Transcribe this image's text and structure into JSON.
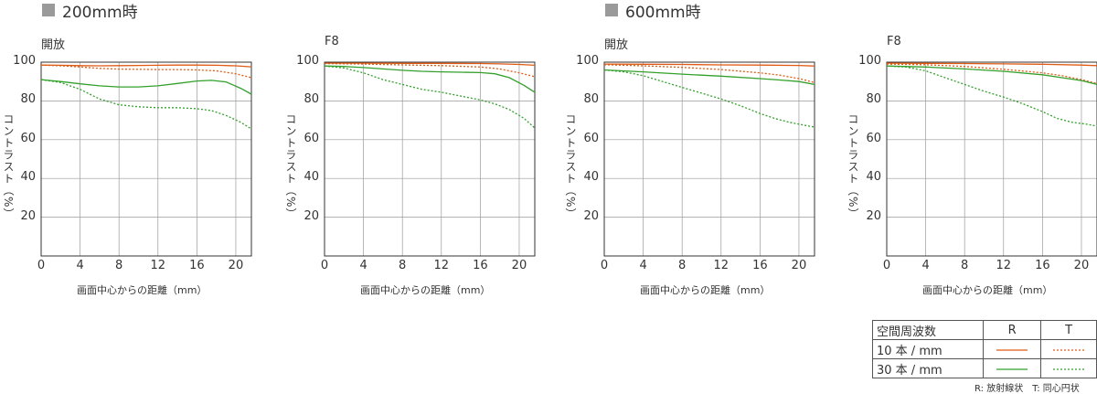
{
  "headers": [
    "200mm時",
    "600mm時"
  ],
  "chart_data": [
    {
      "type": "line",
      "aperture": "開放",
      "xlabel": "画面中心からの距離（mm）",
      "ylabel": "コントラスト（%）",
      "xlim": [
        0,
        21.6
      ],
      "ylim": [
        0,
        100
      ],
      "xticks": [
        0,
        4,
        8,
        12,
        16,
        20
      ],
      "yticks": [
        20,
        40,
        60,
        80,
        100
      ],
      "grid": true,
      "series": [
        {
          "name": "10本/mm R",
          "x": [
            0,
            2,
            4,
            6,
            8,
            10,
            12,
            14,
            16,
            18,
            20,
            21.6
          ],
          "y": [
            98.5,
            98.4,
            98.2,
            98.1,
            98.2,
            98.3,
            98.4,
            98.5,
            98.5,
            98.4,
            98.1,
            97.6
          ]
        },
        {
          "name": "10本/mm T",
          "x": [
            0,
            2,
            4,
            6,
            8,
            10,
            12,
            14,
            16,
            18,
            20,
            21.6
          ],
          "y": [
            98.5,
            98.1,
            97.5,
            96.8,
            96.4,
            96.3,
            96.2,
            96.2,
            96.0,
            95.5,
            94.0,
            92.0
          ]
        },
        {
          "name": "30本/mm R",
          "x": [
            0,
            2,
            4,
            6,
            8,
            10,
            12,
            14,
            16,
            17.5,
            19,
            20.5,
            21.6
          ],
          "y": [
            91,
            90,
            88.8,
            87.8,
            87.2,
            87.2,
            87.8,
            89.0,
            90.3,
            90.6,
            89.8,
            86.5,
            83.5
          ]
        },
        {
          "name": "30本/mm T",
          "x": [
            0,
            2,
            4,
            6,
            8,
            10,
            12,
            14,
            16,
            17.5,
            19,
            20.5,
            21.6
          ],
          "y": [
            91,
            89.5,
            86,
            81,
            78,
            77,
            76.5,
            76.5,
            76.0,
            75.0,
            72.5,
            69,
            65.5
          ]
        }
      ]
    },
    {
      "type": "line",
      "aperture": "F8",
      "xlabel": "画面中心からの距離（mm）",
      "ylabel": "コントラスト（%）",
      "xlim": [
        0,
        21.6
      ],
      "ylim": [
        0,
        100
      ],
      "xticks": [
        0,
        4,
        8,
        12,
        16,
        20
      ],
      "yticks": [
        20,
        40,
        60,
        80,
        100
      ],
      "grid": true,
      "series": [
        {
          "name": "10本/mm R",
          "x": [
            0,
            4,
            8,
            12,
            16,
            18,
            20,
            21.6
          ],
          "y": [
            99.5,
            99.5,
            99.4,
            99.4,
            99.3,
            99.1,
            98.8,
            98.4
          ]
        },
        {
          "name": "10本/mm T",
          "x": [
            0,
            4,
            8,
            12,
            16,
            18,
            20,
            21.6
          ],
          "y": [
            99.3,
            99.0,
            98.6,
            98.2,
            97.5,
            96.5,
            94.5,
            92.5
          ]
        },
        {
          "name": "30本/mm R",
          "x": [
            0,
            2,
            4,
            6,
            8,
            10,
            12,
            14,
            16,
            17.5,
            19,
            20.5,
            21.6
          ],
          "y": [
            98,
            97.8,
            97.2,
            96.5,
            95.8,
            95.3,
            95.0,
            94.8,
            94.6,
            94.0,
            92.0,
            88.0,
            84.5
          ]
        },
        {
          "name": "30本/mm T",
          "x": [
            0,
            2,
            4,
            6,
            8,
            10,
            12,
            14,
            16,
            17.5,
            19,
            20.5,
            21.6
          ],
          "y": [
            98,
            97,
            94.5,
            91,
            88.5,
            86,
            84.5,
            82.5,
            80.5,
            78.5,
            75.5,
            71,
            66
          ]
        }
      ]
    },
    {
      "type": "line",
      "aperture": "開放",
      "xlabel": "画面中心からの距離（mm）",
      "ylabel": "コントラスト（%）",
      "xlim": [
        0,
        21.6
      ],
      "ylim": [
        0,
        100
      ],
      "xticks": [
        0,
        4,
        8,
        12,
        16,
        20
      ],
      "yticks": [
        20,
        40,
        60,
        80,
        100
      ],
      "grid": true,
      "series": [
        {
          "name": "10本/mm R",
          "x": [
            0,
            4,
            8,
            12,
            16,
            20,
            21.6
          ],
          "y": [
            99,
            98.9,
            98.8,
            98.6,
            98.5,
            98.3,
            98.0
          ]
        },
        {
          "name": "10本/mm T",
          "x": [
            0,
            4,
            8,
            12,
            16,
            18,
            20,
            21.6
          ],
          "y": [
            98.7,
            98.1,
            97.3,
            96.2,
            94.5,
            93.3,
            91.5,
            89.5
          ]
        },
        {
          "name": "30本/mm R",
          "x": [
            0,
            4,
            8,
            12,
            16,
            18,
            20,
            21.6
          ],
          "y": [
            96,
            95,
            93.8,
            92.8,
            91.5,
            90.8,
            90.0,
            88.5
          ]
        },
        {
          "name": "30本/mm T",
          "x": [
            0,
            2,
            4,
            6,
            8,
            10,
            12,
            14,
            16,
            17.5,
            19,
            20.5,
            21.6
          ],
          "y": [
            96,
            95,
            93,
            90,
            87,
            84,
            81,
            77.5,
            73.5,
            71,
            69,
            67.5,
            66.5
          ]
        }
      ]
    },
    {
      "type": "line",
      "aperture": "F8",
      "xlabel": "画面中心からの距離（mm）",
      "ylabel": "コントラスト（%）",
      "xlim": [
        0,
        21.6
      ],
      "ylim": [
        0,
        100
      ],
      "xticks": [
        0,
        4,
        8,
        12,
        16,
        20
      ],
      "yticks": [
        20,
        40,
        60,
        80,
        100
      ],
      "grid": true,
      "series": [
        {
          "name": "10本/mm R",
          "x": [
            0,
            4,
            8,
            12,
            16,
            20,
            21.6
          ],
          "y": [
            99.5,
            99.4,
            99.3,
            99.1,
            98.9,
            98.5,
            98.2
          ]
        },
        {
          "name": "10本/mm T",
          "x": [
            0,
            4,
            8,
            12,
            16,
            18,
            20,
            21.6
          ],
          "y": [
            99.0,
            98.7,
            97.8,
            96.3,
            94.5,
            93,
            91,
            89
          ]
        },
        {
          "name": "30本/mm R",
          "x": [
            0,
            4,
            8,
            12,
            16,
            18,
            20,
            21.6
          ],
          "y": [
            98,
            97.5,
            96.5,
            95.3,
            93.5,
            92,
            90.5,
            88.5
          ]
        },
        {
          "name": "30本/mm T",
          "x": [
            0,
            2,
            4,
            6,
            8,
            10,
            12,
            14,
            16,
            17.5,
            19,
            20.5,
            21.6
          ],
          "y": [
            98,
            97.5,
            95.5,
            92,
            88.5,
            85,
            82,
            78.5,
            74.5,
            71,
            69,
            68,
            67
          ]
        }
      ]
    }
  ],
  "styles": {
    "R10": {
      "color": "#e05a14",
      "dash": ""
    },
    "T10": {
      "color": "#e05a14",
      "dash": "2,2"
    },
    "R30": {
      "color": "#33a02c",
      "dash": ""
    },
    "T30": {
      "color": "#33a02c",
      "dash": "2,2"
    },
    "grid": "#9a9a9a",
    "axis": "#333333"
  },
  "legend": {
    "header": [
      "空間周波数",
      "R",
      "T"
    ],
    "rows": [
      "10 本 / mm",
      "30 本 / mm"
    ],
    "note": "R: 放射線状　T: 同心円状"
  }
}
